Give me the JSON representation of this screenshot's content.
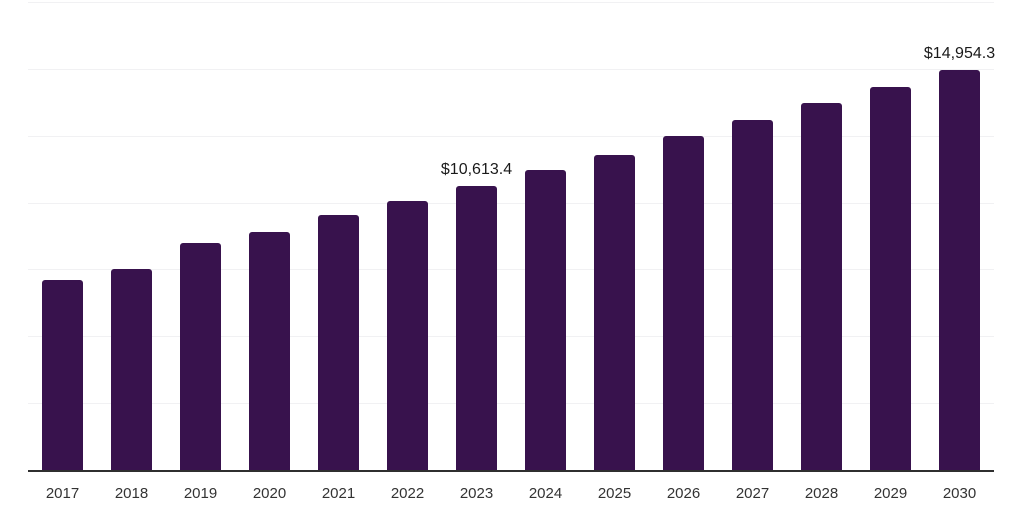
{
  "chart_data": {
    "type": "bar",
    "title": "",
    "xlabel": "",
    "ylabel": "",
    "categories": [
      "2017",
      "2018",
      "2019",
      "2020",
      "2021",
      "2022",
      "2023",
      "2024",
      "2025",
      "2026",
      "2027",
      "2028",
      "2029",
      "2030"
    ],
    "values": [
      7100,
      7520,
      8490,
      8900,
      9540,
      10060,
      10613.4,
      11220,
      11780,
      12490,
      13090,
      13730,
      14320,
      14954.3
    ],
    "data_labels": [
      "",
      "",
      "",
      "",
      "",
      "",
      "$10,613.4",
      "",
      "",
      "",
      "",
      "",
      "",
      "$14,954.3"
    ],
    "ylim": [
      0,
      17500
    ],
    "gridline_interval": 2500,
    "grid": "horizontal-only",
    "y_axis_labels_shown": false,
    "legend_position": "none",
    "colors": {
      "bar": "#38124d",
      "background": "#ffffff",
      "gridline": "#f1f1f3",
      "axis_line": "#2f2f2f",
      "tick_label": "#333333",
      "data_label": "#1a1a1a"
    }
  }
}
